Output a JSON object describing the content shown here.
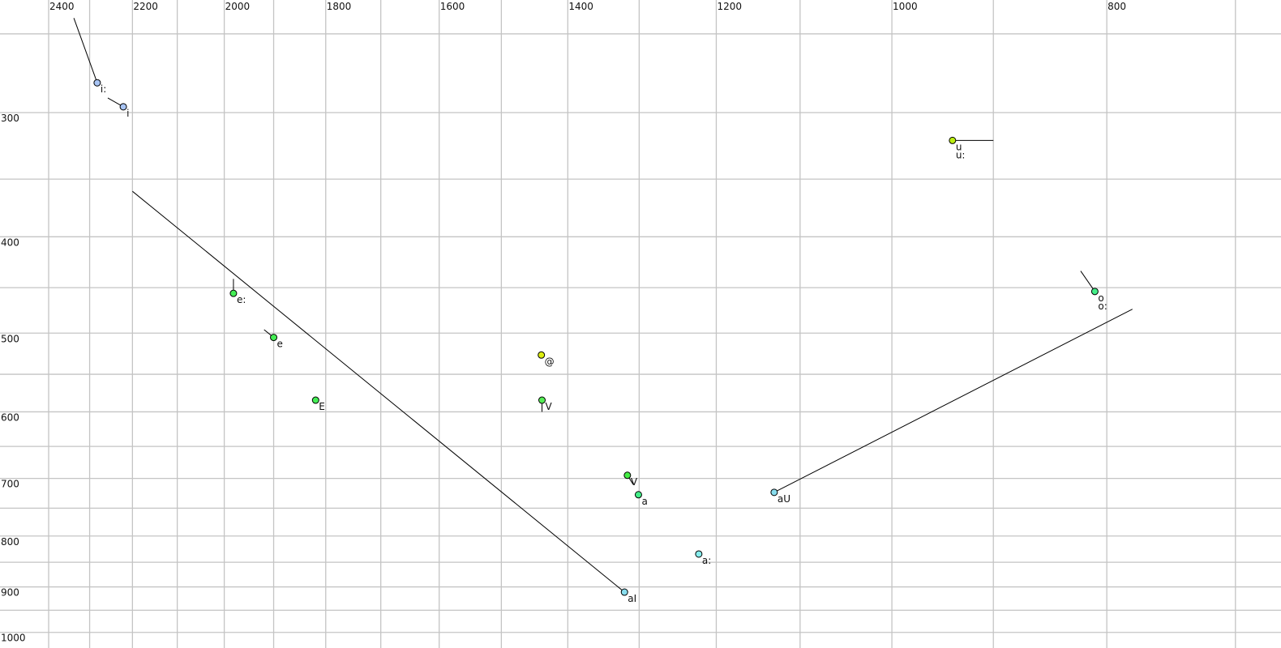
{
  "chart_data": {
    "type": "scatter",
    "title": "",
    "xlabel": "",
    "ylabel": "",
    "x_scale": "log",
    "y_scale": "log",
    "x_reversed": true,
    "xlim": [
      2400,
      750
    ],
    "ylim": [
      250,
      1020
    ],
    "grid": true,
    "x_gridlines": [
      2400,
      2300,
      2200,
      2100,
      2000,
      1900,
      1800,
      1700,
      1600,
      1500,
      1400,
      1300,
      1200,
      1100,
      1000,
      900,
      800,
      700
    ],
    "x_tick_labels": [
      2400,
      2200,
      2000,
      1800,
      1600,
      1400,
      1200,
      1000,
      800
    ],
    "y_gridlines": [
      250,
      300,
      350,
      400,
      450,
      500,
      550,
      600,
      650,
      700,
      750,
      800,
      850,
      900,
      950,
      1000
    ],
    "y_tick_labels": [
      300,
      400,
      500,
      600,
      700,
      800,
      900,
      1000
    ],
    "points": [
      {
        "label": "i:",
        "x": 2282,
        "y": 280,
        "color": "#a8c4f4",
        "trail": [
          [
            2338,
            241
          ],
          [
            2282,
            280
          ]
        ]
      },
      {
        "label": "i",
        "x": 2221,
        "y": 296,
        "color": "#a8c4f4",
        "trail": [
          [
            2257,
            290
          ],
          [
            2221,
            296
          ]
        ]
      },
      {
        "label": "e:",
        "x": 1981,
        "y": 456,
        "color": "#44ee55",
        "trail": [
          [
            1981,
            441
          ],
          [
            1981,
            456
          ]
        ]
      },
      {
        "label": "e",
        "x": 1900,
        "y": 505,
        "color": "#44ee55",
        "trail": [
          [
            1919,
            496
          ],
          [
            1900,
            505
          ]
        ]
      },
      {
        "label": "E",
        "x": 1819,
        "y": 584,
        "color": "#44ee55"
      },
      {
        "label": "@",
        "x": 1439,
        "y": 526,
        "color": "#ddee11"
      },
      {
        "label": "V",
        "x": 1438,
        "y": 584,
        "color": "#55ee55",
        "label_color": "#777777",
        "trail": [
          [
            1438,
            584
          ],
          [
            1438,
            600
          ]
        ]
      },
      {
        "label": "V",
        "x": 1316,
        "y": 695,
        "color": "#44ee44",
        "trail": [
          [
            1316,
            695
          ],
          [
            1308,
            710
          ]
        ]
      },
      {
        "label": "a",
        "x": 1301,
        "y": 727,
        "color": "#44ee88"
      },
      {
        "label": "a:",
        "x": 1222,
        "y": 834,
        "color": "#88eeee"
      },
      {
        "label": "aI",
        "x": 1320,
        "y": 911,
        "color": "#88ddee",
        "trail": [
          [
            2200,
            360
          ],
          [
            1320,
            911
          ]
        ]
      },
      {
        "label": "aU",
        "x": 1130,
        "y": 723,
        "color": "#88ddee",
        "trail": [
          [
            1130,
            723
          ],
          [
            779,
            473
          ]
        ]
      },
      {
        "label": "u",
        "label2": "u:",
        "x": 939,
        "y": 320,
        "color": "#bbee11",
        "trail": [
          [
            939,
            320
          ],
          [
            900,
            320
          ]
        ]
      },
      {
        "label": "o",
        "label2": "o:",
        "x": 810,
        "y": 454,
        "color": "#44ee88",
        "trail": [
          [
            822,
            433
          ],
          [
            810,
            454
          ]
        ]
      }
    ]
  }
}
